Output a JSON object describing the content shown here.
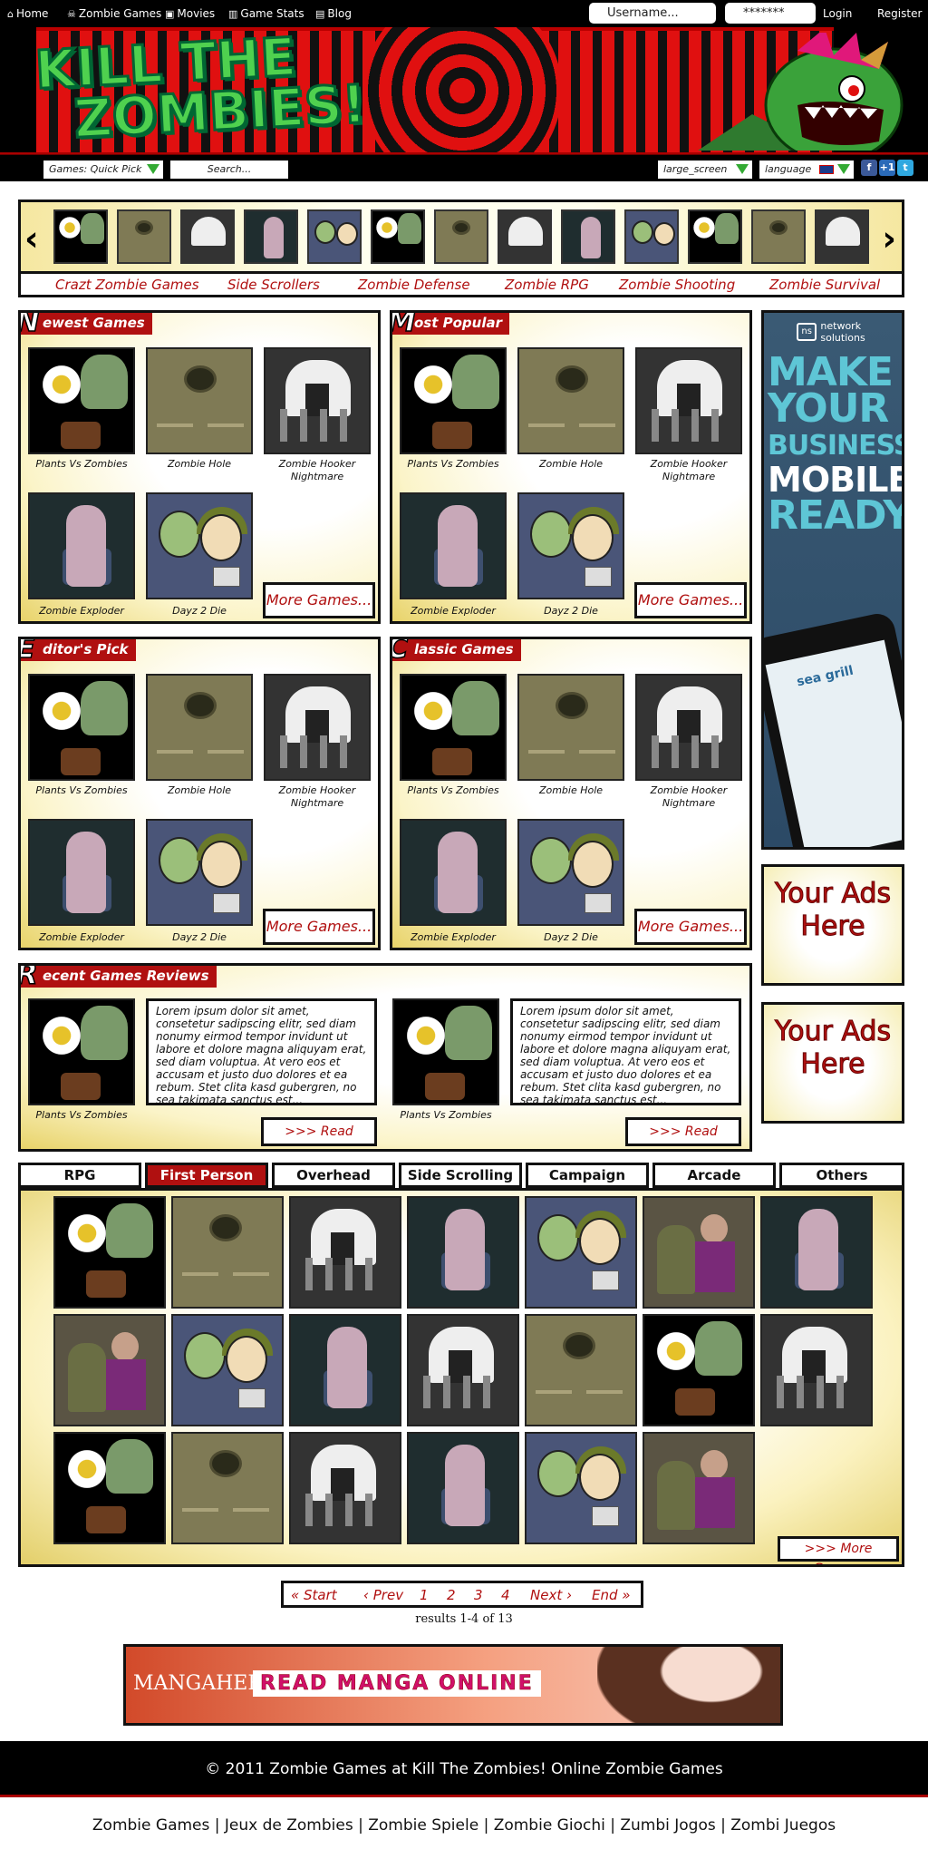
{
  "nav": {
    "links": [
      {
        "label": "Home",
        "icon": "home-icon"
      },
      {
        "label": "Zombie Games",
        "icon": "zombie-icon"
      },
      {
        "label": "Movies",
        "icon": "movie-icon"
      },
      {
        "label": "Game Stats",
        "icon": "stats-icon"
      },
      {
        "label": "Blog",
        "icon": "blog-icon"
      }
    ],
    "username_placeholder": "Username...",
    "password_value": "*******",
    "login_label": "Login",
    "register_label": "Register"
  },
  "banner": {
    "logo_line1": "KILL THE",
    "logo_line2": "ZOMBIES!"
  },
  "subbar": {
    "quick_pick": "Games: Quick Pick",
    "search_placeholder": "Search...",
    "screen_select": "large_screen",
    "language_select": "language"
  },
  "categories": [
    "Crazt Zombie Games",
    "Side Scrollers",
    "Zombie Defense",
    "Zombie RPG",
    "Zombie Shooting",
    "Zombie Survival"
  ],
  "panels": {
    "newest": {
      "cap": "N",
      "rest": "ewest Games"
    },
    "popular": {
      "cap": "M",
      "rest": "ost Popular"
    },
    "editor": {
      "cap": "E",
      "rest": "ditor's Pick"
    },
    "classic": {
      "cap": "C",
      "rest": "lassic Games"
    },
    "reviews": {
      "cap": "R",
      "rest": "ecent Games Reviews"
    }
  },
  "games": {
    "g1": "Plants Vs Zombies",
    "g2": "Zombie Hole",
    "g3": "Zombie Hooker Nightmare",
    "g4": "Zombie Exploder",
    "g5": "Dayz 2 Die"
  },
  "more_games": "More Games...",
  "review": {
    "game": "Plants Vs Zombies",
    "text": "Lorem ipsum dolor sit amet, consetetur sadipscing elitr, sed diam nonumy eirmod tempor invidunt ut labore et dolore magna aliquyam erat, sed diam voluptua. At vero eos et accusam et justo duo dolores et ea rebum. Stet clita kasd gubergren, no sea takimata sanctus est...",
    "read_more": ">>>   Read More..."
  },
  "ads": {
    "tall_brand": "network solutions",
    "tall_l1": "MAKE",
    "tall_l2": "YOUR",
    "tall_l3": "BUSINESS",
    "tall_l4": "MOBILE",
    "tall_l5": "READY",
    "phone_brand": "sea grill",
    "your_ads": "Your Ads Here"
  },
  "tabs": [
    "RPG",
    "First Person",
    "Overhead",
    "Side Scrolling",
    "Campaign",
    "Arcade",
    "Others"
  ],
  "active_tab": "First Person",
  "more_game": ">>>   More Game...",
  "pager": {
    "start": "« Start",
    "prev": "‹ Prev",
    "p1": "1",
    "p2": "2",
    "p3": "3",
    "p4": "4",
    "next": "Next ›",
    "end": "End »",
    "results": "results 1-4 of 13"
  },
  "manga": {
    "brand": "MANGAHERE",
    "cta": "READ MANGA ONLINE"
  },
  "footer": {
    "copyright": "© 2011 Zombie Games at Kill The Zombies! Online Zombie Games",
    "links": "Zombie Games | Jeux de Zombies | Zombie Spiele | Zombie Giochi | Zumbi Jogos | Zombi Juegos"
  },
  "colors": {
    "accent": "#b01010",
    "logo_green": "#4fd14f"
  }
}
